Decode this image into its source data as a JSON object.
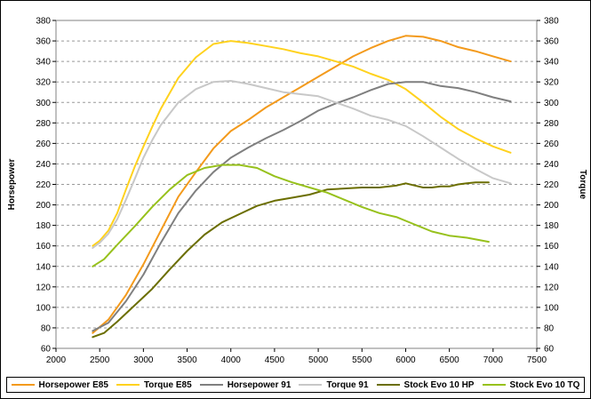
{
  "chart_data": {
    "type": "line",
    "title": "",
    "xlabel": "",
    "ylabel_left": "Horsepower",
    "ylabel_right": "Torque",
    "xlim": [
      2000,
      7500
    ],
    "x_ticks": [
      2000,
      2500,
      3000,
      3500,
      4000,
      4500,
      5000,
      5500,
      6000,
      6500,
      7000,
      7500
    ],
    "ylim": [
      60,
      380
    ],
    "y_ticks": [
      60,
      80,
      100,
      120,
      140,
      160,
      180,
      200,
      220,
      240,
      260,
      280,
      300,
      320,
      340,
      360,
      380
    ],
    "grid": "horizontal dashed",
    "legend_position": "bottom",
    "series": [
      {
        "name": "Horsepower E85",
        "color": "#f39a1c",
        "x": [
          2420,
          2600,
          2800,
          3000,
          3200,
          3400,
          3600,
          3800,
          4000,
          4200,
          4400,
          4600,
          4800,
          5000,
          5200,
          5400,
          5600,
          5800,
          6000,
          6200,
          6400,
          6600,
          6800,
          7000,
          7200
        ],
        "y": [
          75,
          88,
          112,
          142,
          175,
          208,
          232,
          255,
          272,
          283,
          295,
          305,
          315,
          325,
          335,
          345,
          353,
          360,
          365,
          364,
          360,
          354,
          350,
          345,
          340
        ]
      },
      {
        "name": "Torque E85",
        "color": "#ffd21e",
        "x": [
          2420,
          2500,
          2600,
          2700,
          2800,
          2900,
          3000,
          3100,
          3200,
          3400,
          3600,
          3800,
          4000,
          4200,
          4400,
          4600,
          4800,
          5000,
          5200,
          5400,
          5600,
          5800,
          6000,
          6200,
          6400,
          6600,
          6800,
          7000,
          7200
        ],
        "y": [
          160,
          165,
          175,
          192,
          215,
          237,
          257,
          276,
          294,
          324,
          344,
          357,
          360,
          358,
          355,
          352,
          348,
          345,
          340,
          335,
          328,
          322,
          313,
          300,
          286,
          274,
          265,
          257,
          251
        ]
      },
      {
        "name": "Horsepower 91",
        "color": "#7f7f7f",
        "x": [
          2420,
          2600,
          2800,
          3000,
          3200,
          3400,
          3600,
          3800,
          4000,
          4200,
          4400,
          4600,
          4800,
          5000,
          5200,
          5400,
          5600,
          5800,
          6000,
          6200,
          6400,
          6600,
          6800,
          7000,
          7200
        ],
        "y": [
          77,
          85,
          106,
          132,
          163,
          192,
          214,
          232,
          246,
          256,
          265,
          273,
          282,
          292,
          299,
          305,
          312,
          318,
          320,
          320,
          316,
          314,
          310,
          305,
          301
        ]
      },
      {
        "name": "Torque 91",
        "color": "#c8c8c8",
        "x": [
          2420,
          2500,
          2600,
          2700,
          2800,
          2900,
          3000,
          3100,
          3200,
          3400,
          3600,
          3800,
          4000,
          4200,
          4400,
          4600,
          4800,
          5000,
          5200,
          5400,
          5600,
          5800,
          6000,
          6200,
          6400,
          6600,
          6800,
          7000,
          7200
        ],
        "y": [
          158,
          163,
          172,
          186,
          205,
          225,
          246,
          263,
          278,
          300,
          313,
          320,
          321,
          318,
          314,
          310,
          308,
          306,
          300,
          294,
          287,
          283,
          277,
          267,
          256,
          245,
          235,
          226,
          221
        ]
      },
      {
        "name": "Stock Evo 10 HP",
        "color": "#6b6e00",
        "x": [
          2420,
          2550,
          2700,
          2900,
          3100,
          3300,
          3500,
          3700,
          3900,
          4100,
          4300,
          4500,
          4700,
          4900,
          5100,
          5300,
          5500,
          5700,
          5900,
          6000,
          6100,
          6200,
          6300,
          6400,
          6500,
          6600,
          6700,
          6800,
          6950
        ],
        "y": [
          71,
          75,
          86,
          102,
          118,
          137,
          155,
          171,
          183,
          191,
          199,
          204,
          207,
          210,
          215,
          216,
          217,
          217,
          219,
          221,
          219,
          217,
          217,
          218,
          218,
          220,
          221,
          222,
          222
        ]
      },
      {
        "name": "Stock Evo 10 TQ",
        "color": "#97c11c",
        "x": [
          2420,
          2550,
          2700,
          2900,
          3100,
          3300,
          3500,
          3700,
          3900,
          4100,
          4300,
          4500,
          4700,
          4900,
          5100,
          5300,
          5500,
          5700,
          5900,
          6100,
          6300,
          6500,
          6700,
          6950
        ],
        "y": [
          140,
          147,
          161,
          179,
          198,
          215,
          229,
          236,
          239,
          239,
          236,
          228,
          222,
          217,
          212,
          205,
          198,
          192,
          188,
          181,
          174,
          170,
          168,
          164
        ]
      }
    ]
  }
}
